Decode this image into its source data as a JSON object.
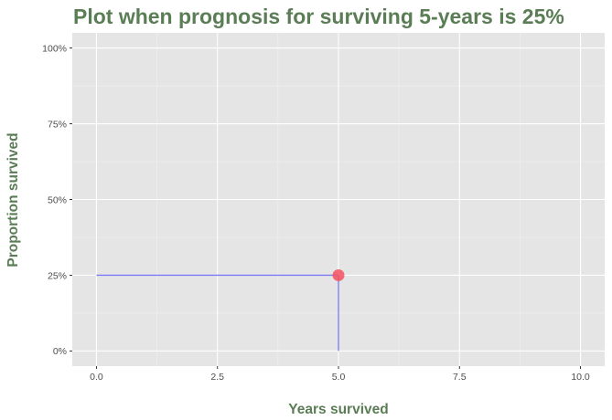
{
  "chart_data": {
    "type": "line",
    "title": "Plot when prognosis for surviving 5-years is 25%",
    "xlabel": "Years survived",
    "ylabel": "Proportion survived",
    "xlim": [
      -0.5,
      10.5
    ],
    "ylim": [
      -0.05,
      1.05
    ],
    "x_ticks": [
      0,
      2.5,
      5,
      7.5,
      10
    ],
    "x_tick_labels": [
      "0.0",
      "2.5",
      "5.0",
      "7.5",
      "10.0"
    ],
    "x_minor_ticks": [
      1.25,
      3.75,
      6.25,
      8.75
    ],
    "y_ticks": [
      0,
      0.25,
      0.5,
      0.75,
      1.0
    ],
    "y_tick_labels": [
      "0%",
      "25%",
      "50%",
      "75%",
      "100%"
    ],
    "y_minor_ticks": [
      0.125,
      0.375,
      0.625,
      0.875
    ],
    "grid": true,
    "series": [
      {
        "type": "line",
        "x": [
          0,
          5
        ],
        "y": [
          0.25,
          0.25
        ]
      },
      {
        "type": "line",
        "x": [
          5,
          5
        ],
        "y": [
          0.25,
          0
        ]
      },
      {
        "type": "point",
        "x": [
          5
        ],
        "y": [
          0.25
        ]
      }
    ],
    "colors": {
      "panel_background": "#e5e5e5",
      "grid_major": "#ffffff",
      "grid_minor": "#f2f2f2",
      "guide_line": "#7b7bf5",
      "point": "#f5515f",
      "title": "#5a7d55",
      "axis_title": "#5a7d55"
    }
  }
}
